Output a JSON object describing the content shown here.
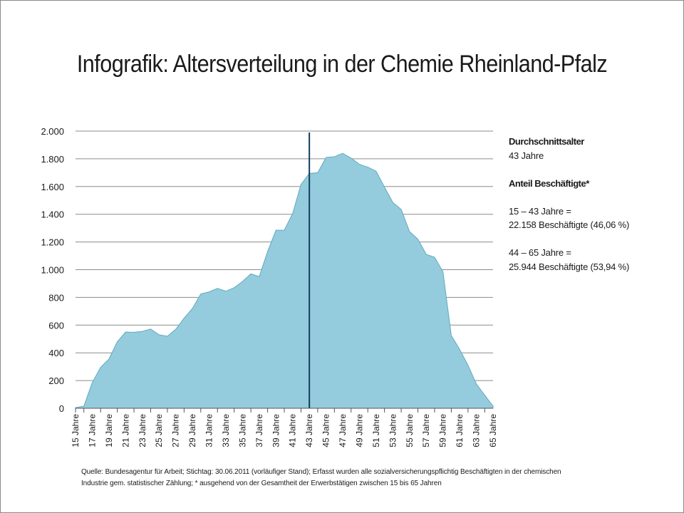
{
  "title": "Infografik: Altersverteilung in der Chemie Rheinland-Pfalz",
  "info": {
    "avg_heading": "Durchschnittsalter",
    "avg_value": "43 Jahre",
    "share_heading": "Anteil Beschäftigte*",
    "group1_range": "15 – 43 Jahre =",
    "group1_detail": "22.158 Beschäftigte (46,06 %)",
    "group2_range": "44 – 65 Jahre =",
    "group2_detail": "25.944 Beschäftigte (53,94 %)"
  },
  "source": {
    "line1": "Quelle: Bundesagentur für Arbeit; Stichtag: 30.06.2011 (vorläufiger Stand); Erfasst wurden alle sozialversicherungspflichtig  Beschäftigten in der chemischen",
    "line2": "Industrie gem. statistischer Zählung; * ausgehend von der Gesamtheit der Erwerbstätigen zwischen  15 bis 65 Jahren"
  },
  "colors": {
    "fill": "#94CCDD",
    "stroke": "#5FA9C1",
    "grid": "#8c8c8c",
    "marker": "#0F3D5C"
  },
  "chart_data": {
    "type": "area",
    "x": [
      15,
      16,
      17,
      18,
      19,
      20,
      21,
      22,
      23,
      24,
      25,
      26,
      27,
      28,
      29,
      30,
      31,
      32,
      33,
      34,
      35,
      36,
      37,
      38,
      39,
      40,
      41,
      42,
      43,
      44,
      45,
      46,
      47,
      48,
      49,
      50,
      51,
      52,
      53,
      54,
      55,
      56,
      57,
      58,
      59,
      60,
      61,
      62,
      63,
      64,
      65
    ],
    "values": [
      5,
      15,
      185,
      295,
      355,
      480,
      550,
      548,
      555,
      572,
      530,
      520,
      570,
      650,
      720,
      825,
      840,
      865,
      845,
      870,
      915,
      970,
      950,
      1130,
      1285,
      1285,
      1405,
      1615,
      1695,
      1700,
      1810,
      1815,
      1840,
      1805,
      1760,
      1740,
      1710,
      1595,
      1485,
      1435,
      1275,
      1220,
      1110,
      1090,
      985,
      525,
      425,
      310,
      175,
      95,
      15
    ],
    "x_tick_labels": [
      "15 Jahre",
      "17 Jahre",
      "19 Jahre",
      "21 Jahre",
      "23 Jahre",
      "25 Jahre",
      "27 Jahre",
      "29 Jahre",
      "31 Jahre",
      "33 Jahre",
      "35 Jahre",
      "37 Jahre",
      "39 Jahre",
      "41 Jahre",
      "43 Jahre",
      "45 Jahre",
      "47 Jahre",
      "49 Jahre",
      "51 Jahre",
      "53 Jahre",
      "55 Jahre",
      "57 Jahre",
      "59 Jahre",
      "61 Jahre",
      "63 Jahre",
      "65 Jahre"
    ],
    "y_ticks": [
      0,
      200,
      400,
      600,
      800,
      1000,
      1200,
      1400,
      1600,
      1800,
      2000
    ],
    "y_tick_labels": [
      "0",
      "200",
      "400",
      "600",
      "800",
      "1.000",
      "1.200",
      "1.400",
      "1.600",
      "1.800",
      "2.000"
    ],
    "ylim": [
      0,
      2000
    ],
    "xlim": [
      15,
      65
    ],
    "marker_x": 43,
    "grid": true,
    "legend": "none"
  }
}
